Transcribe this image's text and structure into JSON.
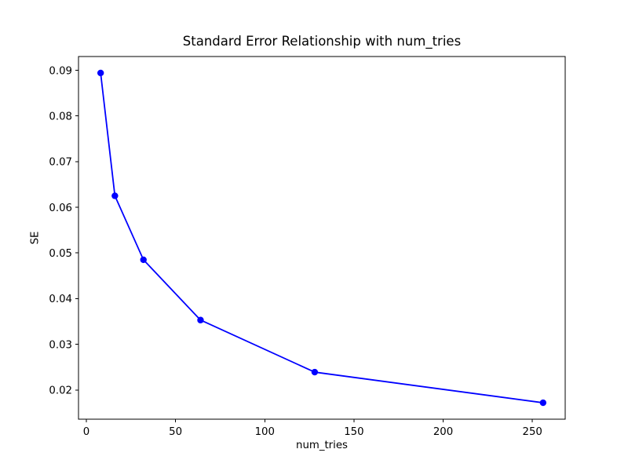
{
  "figure": {
    "background": "#ffffff",
    "text_color": "#000000"
  },
  "chart_data": {
    "type": "line",
    "title": "Standard Error Relationship with num_tries",
    "xlabel": "num_tries",
    "ylabel": "SE",
    "x": [
      8,
      16,
      32,
      64,
      128,
      256
    ],
    "y": [
      0.0894,
      0.0625,
      0.0485,
      0.0353,
      0.0239,
      0.0172
    ],
    "series": [
      {
        "name": "SE",
        "x": [
          8,
          16,
          32,
          64,
          128,
          256
        ],
        "values": [
          0.0894,
          0.0625,
          0.0485,
          0.0353,
          0.0239,
          0.0172
        ]
      }
    ],
    "xticks": [
      0,
      50,
      100,
      150,
      200,
      250
    ],
    "yticks": [
      0.02,
      0.03,
      0.04,
      0.05,
      0.06,
      0.07,
      0.08,
      0.09
    ],
    "xlim": [
      -4.4,
      268.4
    ],
    "ylim": [
      0.0136,
      0.093
    ],
    "grid": false,
    "legend": null,
    "line_color": "#0000ff",
    "marker": "o",
    "axis_color": "#000000"
  }
}
